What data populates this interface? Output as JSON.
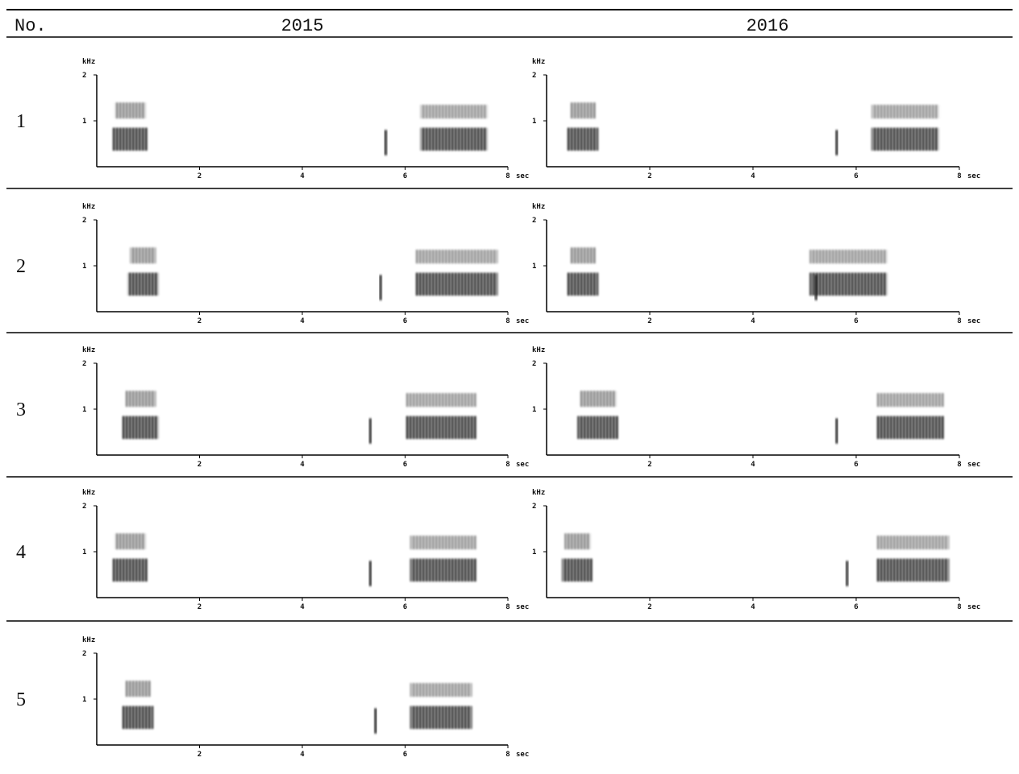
{
  "header": {
    "number": "No.",
    "years": [
      "2015",
      "2016"
    ]
  },
  "axes": {
    "y_label": "kHz",
    "y_ticks": [
      "2",
      "1"
    ],
    "x_ticks": [
      "2",
      "4",
      "6",
      "8"
    ],
    "x_unit": "sec"
  },
  "rows": [
    {
      "label": "1"
    },
    {
      "label": "2"
    },
    {
      "label": "3"
    },
    {
      "label": "4"
    },
    {
      "label": "5"
    }
  ]
}
